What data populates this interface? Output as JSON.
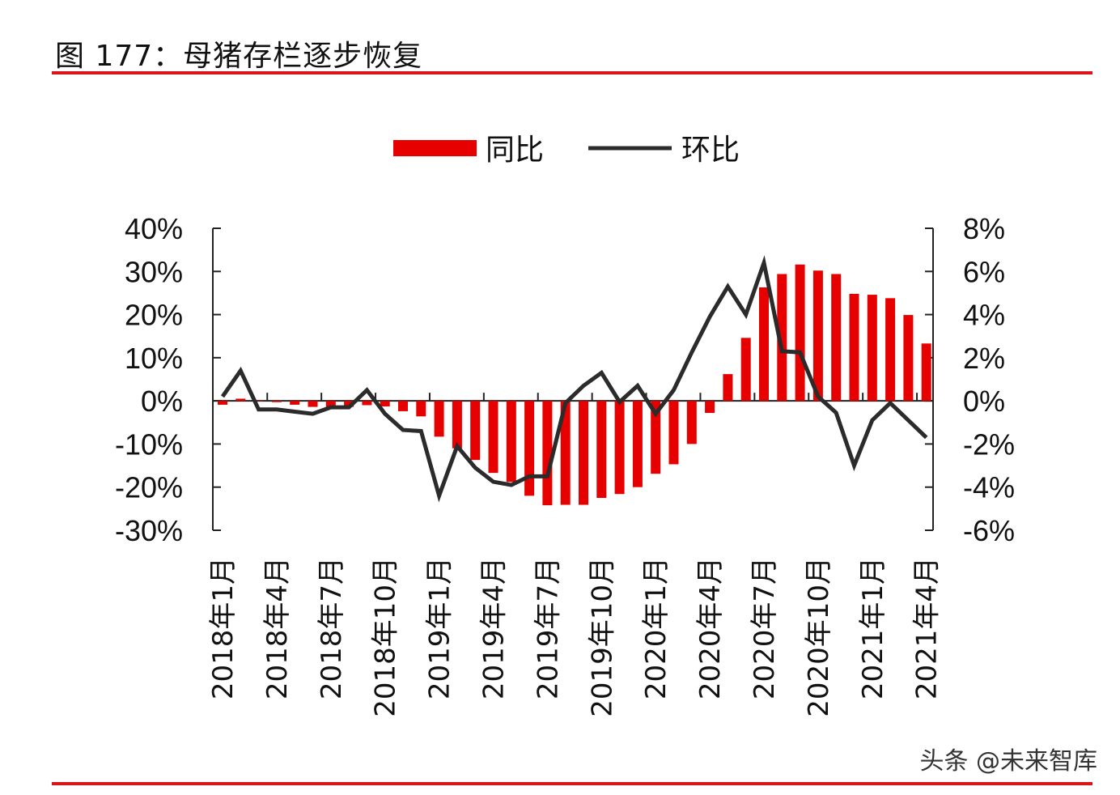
{
  "header": {
    "title": "图 177：母猪存栏逐步恢复"
  },
  "watermark": "头条 @未来智库",
  "chart_data": {
    "type": "bar+line",
    "title": "",
    "categories": [
      "2018-01",
      "2018-02",
      "2018-03",
      "2018-04",
      "2018-05",
      "2018-06",
      "2018-07",
      "2018-08",
      "2018-09",
      "2018-10",
      "2018-11",
      "2018-12",
      "2019-01",
      "2019-02",
      "2019-03",
      "2019-04",
      "2019-05",
      "2019-06",
      "2019-07",
      "2019-08",
      "2019-09",
      "2019-10",
      "2019-11",
      "2019-12",
      "2020-01",
      "2020-02",
      "2020-03",
      "2020-04",
      "2020-05",
      "2020-06",
      "2020-07",
      "2020-08",
      "2020-09",
      "2020-10",
      "2020-11",
      "2020-12",
      "2021-01",
      "2021-02",
      "2021-03",
      "2021-04"
    ],
    "x_tick_labels": [
      "2018年1月",
      "2018年4月",
      "2018年7月",
      "2018年10月",
      "2019年1月",
      "2019年4月",
      "2019年7月",
      "2019年10月",
      "2020年1月",
      "2020年4月",
      "2020年7月",
      "2020年10月",
      "2021年1月",
      "2021年4月"
    ],
    "series": [
      {
        "name": "同比",
        "type": "bar",
        "axis": "left",
        "color": "#e60000",
        "values": [
          -0.9,
          0.5,
          0,
          -0.3,
          -0.9,
          -1.4,
          -1.4,
          -1.4,
          -1.0,
          -1.3,
          -2.4,
          -3.6,
          -8.3,
          -11,
          -13.7,
          -16.7,
          -18.8,
          -22,
          -24.2,
          -24.1,
          -24.1,
          -22.5,
          -21.6,
          -20,
          -16.9,
          -14.7,
          -10,
          -2.8,
          6.2,
          14.6,
          26.3,
          29.4,
          31.6,
          30.2,
          29.4,
          24.8,
          24.6,
          23.8,
          19.9,
          13.3
        ]
      },
      {
        "name": "环比",
        "type": "line",
        "axis": "right",
        "color": "#2b2b2b",
        "values": [
          0.2,
          1.4,
          -0.4,
          -0.4,
          -0.5,
          -0.6,
          -0.3,
          -0.3,
          0.5,
          -0.6,
          -1.35,
          -1.4,
          -4.4,
          -2.1,
          -3.1,
          -3.75,
          -3.9,
          -3.5,
          -3.5,
          -0.1,
          0.7,
          1.3,
          -0.05,
          0.7,
          -0.6,
          0.5,
          2.25,
          3.9,
          5.3,
          4.0,
          6.4,
          2.3,
          2.25,
          0.2,
          -0.55,
          -3.0,
          -0.9,
          -0.1,
          -0.9,
          -1.7
        ]
      }
    ],
    "y_left": {
      "ylim": [
        -30,
        40
      ],
      "ticks": [
        "40%",
        "30%",
        "20%",
        "10%",
        "0%",
        "-10%",
        "-20%",
        "-30%"
      ]
    },
    "y_right": {
      "ylim": [
        -6,
        8
      ],
      "ticks": [
        "8%",
        "6%",
        "4%",
        "2%",
        "0%",
        "-2%",
        "-4%",
        "-6%"
      ]
    },
    "legend": {
      "placement": "top",
      "items": [
        "同比",
        "环比"
      ]
    },
    "grid": false
  }
}
